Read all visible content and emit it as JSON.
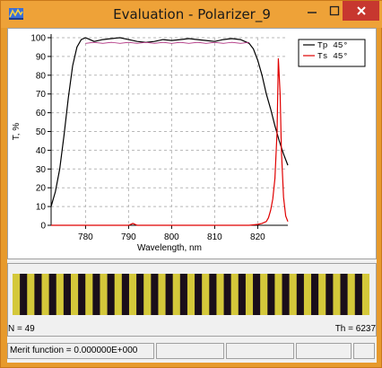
{
  "window": {
    "title": "Evaluation - Polarizer_9",
    "icons": {
      "app": "app-icon",
      "minimize": "minimize-icon",
      "maximize": "maximize-icon",
      "close": "close-icon"
    }
  },
  "chart_data": {
    "type": "line",
    "xlabel": "Wavelength, nm",
    "ylabel": "T, %",
    "xlim": [
      772,
      827
    ],
    "ylim": [
      0,
      100
    ],
    "xticks": [
      "780",
      "790",
      "800",
      "810",
      "820"
    ],
    "yticks": [
      "0",
      "10",
      "20",
      "30",
      "40",
      "50",
      "60",
      "70",
      "80",
      "90",
      "100"
    ],
    "grid": true,
    "legend_position": "top-right",
    "series": [
      {
        "name": "Tp 45°",
        "color": "#000000",
        "x": [
          772,
          773,
          774,
          775,
          776,
          777,
          778,
          779,
          780,
          781,
          782,
          784,
          786,
          788,
          790,
          792,
          794,
          796,
          798,
          800,
          802,
          804,
          806,
          808,
          810,
          812,
          814,
          816,
          818,
          819,
          820,
          821,
          822,
          823,
          824,
          825,
          826,
          827
        ],
        "y": [
          10,
          18,
          30,
          48,
          68,
          85,
          95,
          99,
          100,
          99,
          98,
          99,
          99.5,
          100,
          99,
          98,
          97.5,
          98,
          99,
          98.5,
          99,
          99.5,
          99,
          98.5,
          98,
          99,
          99.5,
          99,
          97,
          94,
          88,
          80,
          70,
          62,
          53,
          45,
          38,
          32
        ]
      },
      {
        "name": "Ts 45°",
        "color": "#e00000",
        "x": [
          772,
          774,
          780,
          782,
          784,
          786,
          788,
          790,
          791,
          792,
          794,
          800,
          806,
          808,
          810,
          816,
          818,
          820,
          821,
          822,
          822.5,
          823,
          823.5,
          824,
          824.5,
          824.8,
          825.2,
          825.5,
          826,
          826.5,
          827
        ],
        "y": [
          0,
          0,
          0,
          0,
          0,
          0,
          0,
          0,
          1,
          0,
          0,
          0,
          0,
          0,
          0,
          0,
          0,
          0.5,
          1,
          2,
          4,
          8,
          14,
          25,
          50,
          89,
          70,
          40,
          15,
          5,
          2
        ]
      },
      {
        "name": "",
        "color": "#b03080",
        "x": [
          780,
          782,
          784,
          786,
          788,
          790,
          792,
          794,
          796,
          798,
          800,
          802,
          804,
          806,
          808,
          810,
          812,
          814,
          816,
          818
        ],
        "y": [
          97,
          97.5,
          97,
          97.5,
          97,
          97.5,
          97,
          97.5,
          97,
          97.5,
          97,
          97.5,
          97,
          97.5,
          97,
          97.5,
          97,
          97.5,
          97,
          97.5
        ]
      }
    ]
  },
  "stack": {
    "layers": [
      "H",
      "L",
      "H",
      "L",
      "H",
      "L",
      "H",
      "L",
      "H",
      "L",
      "H",
      "L",
      "H",
      "L",
      "H",
      "L",
      "H",
      "L",
      "H",
      "L",
      "H",
      "L",
      "H",
      "L",
      "H",
      "L",
      "H",
      "L",
      "H",
      "L",
      "H",
      "L",
      "H",
      "L",
      "H",
      "L",
      "H",
      "L",
      "H",
      "L",
      "H",
      "L",
      "H",
      "L",
      "H",
      "L",
      "H",
      "L",
      "H"
    ],
    "colors": {
      "H": "#d4c83a",
      "L": "#1a0e1a"
    },
    "n_label": "N = 49",
    "th_label": "Th = 6237"
  },
  "status": {
    "merit": "Merit function = 0.000000E+000",
    "cells": [
      "",
      "",
      "",
      ""
    ]
  }
}
